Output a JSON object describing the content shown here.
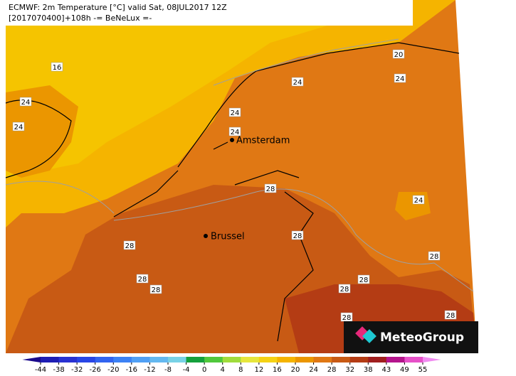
{
  "header": {
    "line1": "ECMWF: 2m Temperature [°C] valid Sat, 08JUL2017 12Z",
    "line2": "[2017070400]+108h -= BeNeLux =-"
  },
  "cities": [
    {
      "label": "Amsterdam"
    },
    {
      "label": "Brussel"
    }
  ],
  "contour_labels": [
    16,
    24,
    24,
    24,
    24,
    24,
    20,
    24,
    28,
    24,
    28,
    28,
    28,
    28,
    28,
    28,
    28,
    28,
    28
  ],
  "colorbar": {
    "ticks": [
      -44,
      -38,
      -32,
      -26,
      -20,
      -16,
      -12,
      -8,
      -4,
      0,
      4,
      8,
      12,
      16,
      20,
      24,
      28,
      32,
      38,
      43,
      49,
      55
    ],
    "colors": [
      "#1a0a8c",
      "#1e1eb4",
      "#2832d2",
      "#2846e6",
      "#3264f0",
      "#3c82f5",
      "#50a0f5",
      "#64b9f0",
      "#78d2e6",
      "#14a03c",
      "#50c83c",
      "#a0dc3c",
      "#e6e63c",
      "#f5d214",
      "#f5b400",
      "#eb9600",
      "#e07814",
      "#c85a14",
      "#b43c14",
      "#a01e1e",
      "#b4148c",
      "#e650c8",
      "#f08cf0"
    ]
  },
  "logo": "MeteoGroup"
}
